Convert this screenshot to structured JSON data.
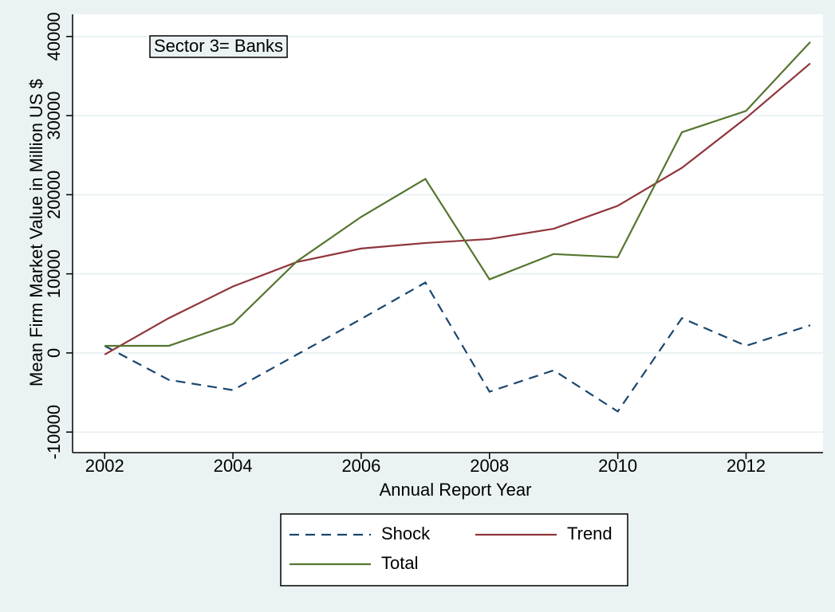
{
  "chart_data": {
    "type": "line",
    "annotation": "Sector 3= Banks",
    "x_label": "Annual Report Year",
    "y_label": "Mean Firm Market Value in Million US $",
    "x": [
      2002,
      2003,
      2004,
      2005,
      2006,
      2007,
      2008,
      2009,
      2010,
      2011,
      2012,
      2013
    ],
    "series": [
      {
        "name": "Shock",
        "color": "#1a476f",
        "style": "dashed",
        "values": [
          900,
          -3400,
          -4700,
          -200,
          4300,
          8900,
          -4900,
          -2200,
          -7400,
          4400,
          900,
          3500
        ]
      },
      {
        "name": "Trend",
        "color": "#90353b",
        "style": "solid",
        "values": [
          -200,
          4400,
          8400,
          11500,
          13200,
          13900,
          14400,
          15700,
          18600,
          23400,
          29700,
          36600
        ]
      },
      {
        "name": "Total",
        "color": "#55752f",
        "style": "solid",
        "values": [
          900,
          900,
          3700,
          11600,
          17200,
          22000,
          9300,
          12500,
          12100,
          27900,
          30600,
          39300
        ]
      }
    ],
    "xlim": [
      2001.5,
      2013.2
    ],
    "xticks": [
      2002,
      2004,
      2006,
      2008,
      2010,
      2012
    ],
    "ylim": [
      -12600,
      42800
    ],
    "yticks": [
      -10000,
      0,
      10000,
      20000,
      30000,
      40000
    ],
    "grid": true,
    "legend": "bottom"
  }
}
